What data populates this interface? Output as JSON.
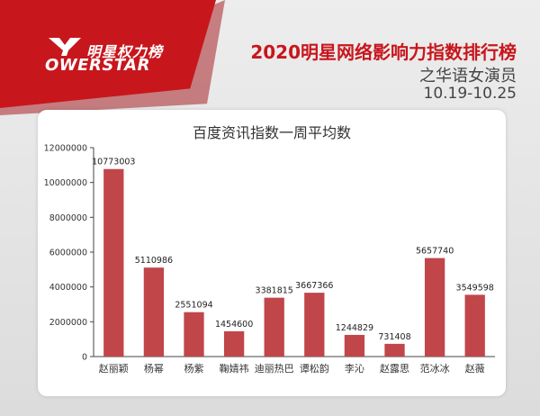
{
  "brand": {
    "logo_cn": "明星权力榜",
    "logo_en": "OWERSTAR",
    "colors": {
      "brand_red": "#c8161d",
      "bar_red": "#c0464a"
    }
  },
  "header": {
    "title": "2020明星网络影响力指数排行榜",
    "subtitle": "之华语女演员",
    "date_range": "10.19-10.25"
  },
  "chart_data": {
    "type": "bar",
    "title": "百度资讯指数一周平均数",
    "xlabel": "",
    "ylabel": "",
    "categories": [
      "赵丽颖",
      "杨幂",
      "杨紫",
      "鞠婧祎",
      "迪丽热巴",
      "谭松韵",
      "李沁",
      "赵露思",
      "范冰冰",
      "赵薇"
    ],
    "values": [
      10773003,
      5110986,
      2551094,
      1454600,
      3381815,
      3667366,
      1244829,
      731408,
      5657740,
      3549598
    ],
    "data_labels": [
      "10773003",
      "5110986",
      "2551094",
      "1454600",
      "3381815",
      "3667366",
      "1244829",
      "731408",
      "5657740",
      "3549598"
    ],
    "ylim": [
      0,
      12000000
    ],
    "yticks": [
      0,
      2000000,
      4000000,
      6000000,
      8000000,
      10000000,
      12000000
    ],
    "ytick_labels": [
      "0",
      "2000000",
      "4000000",
      "6000000",
      "8000000",
      "10000000",
      "12000000"
    ],
    "grid": false,
    "legend": "none"
  }
}
